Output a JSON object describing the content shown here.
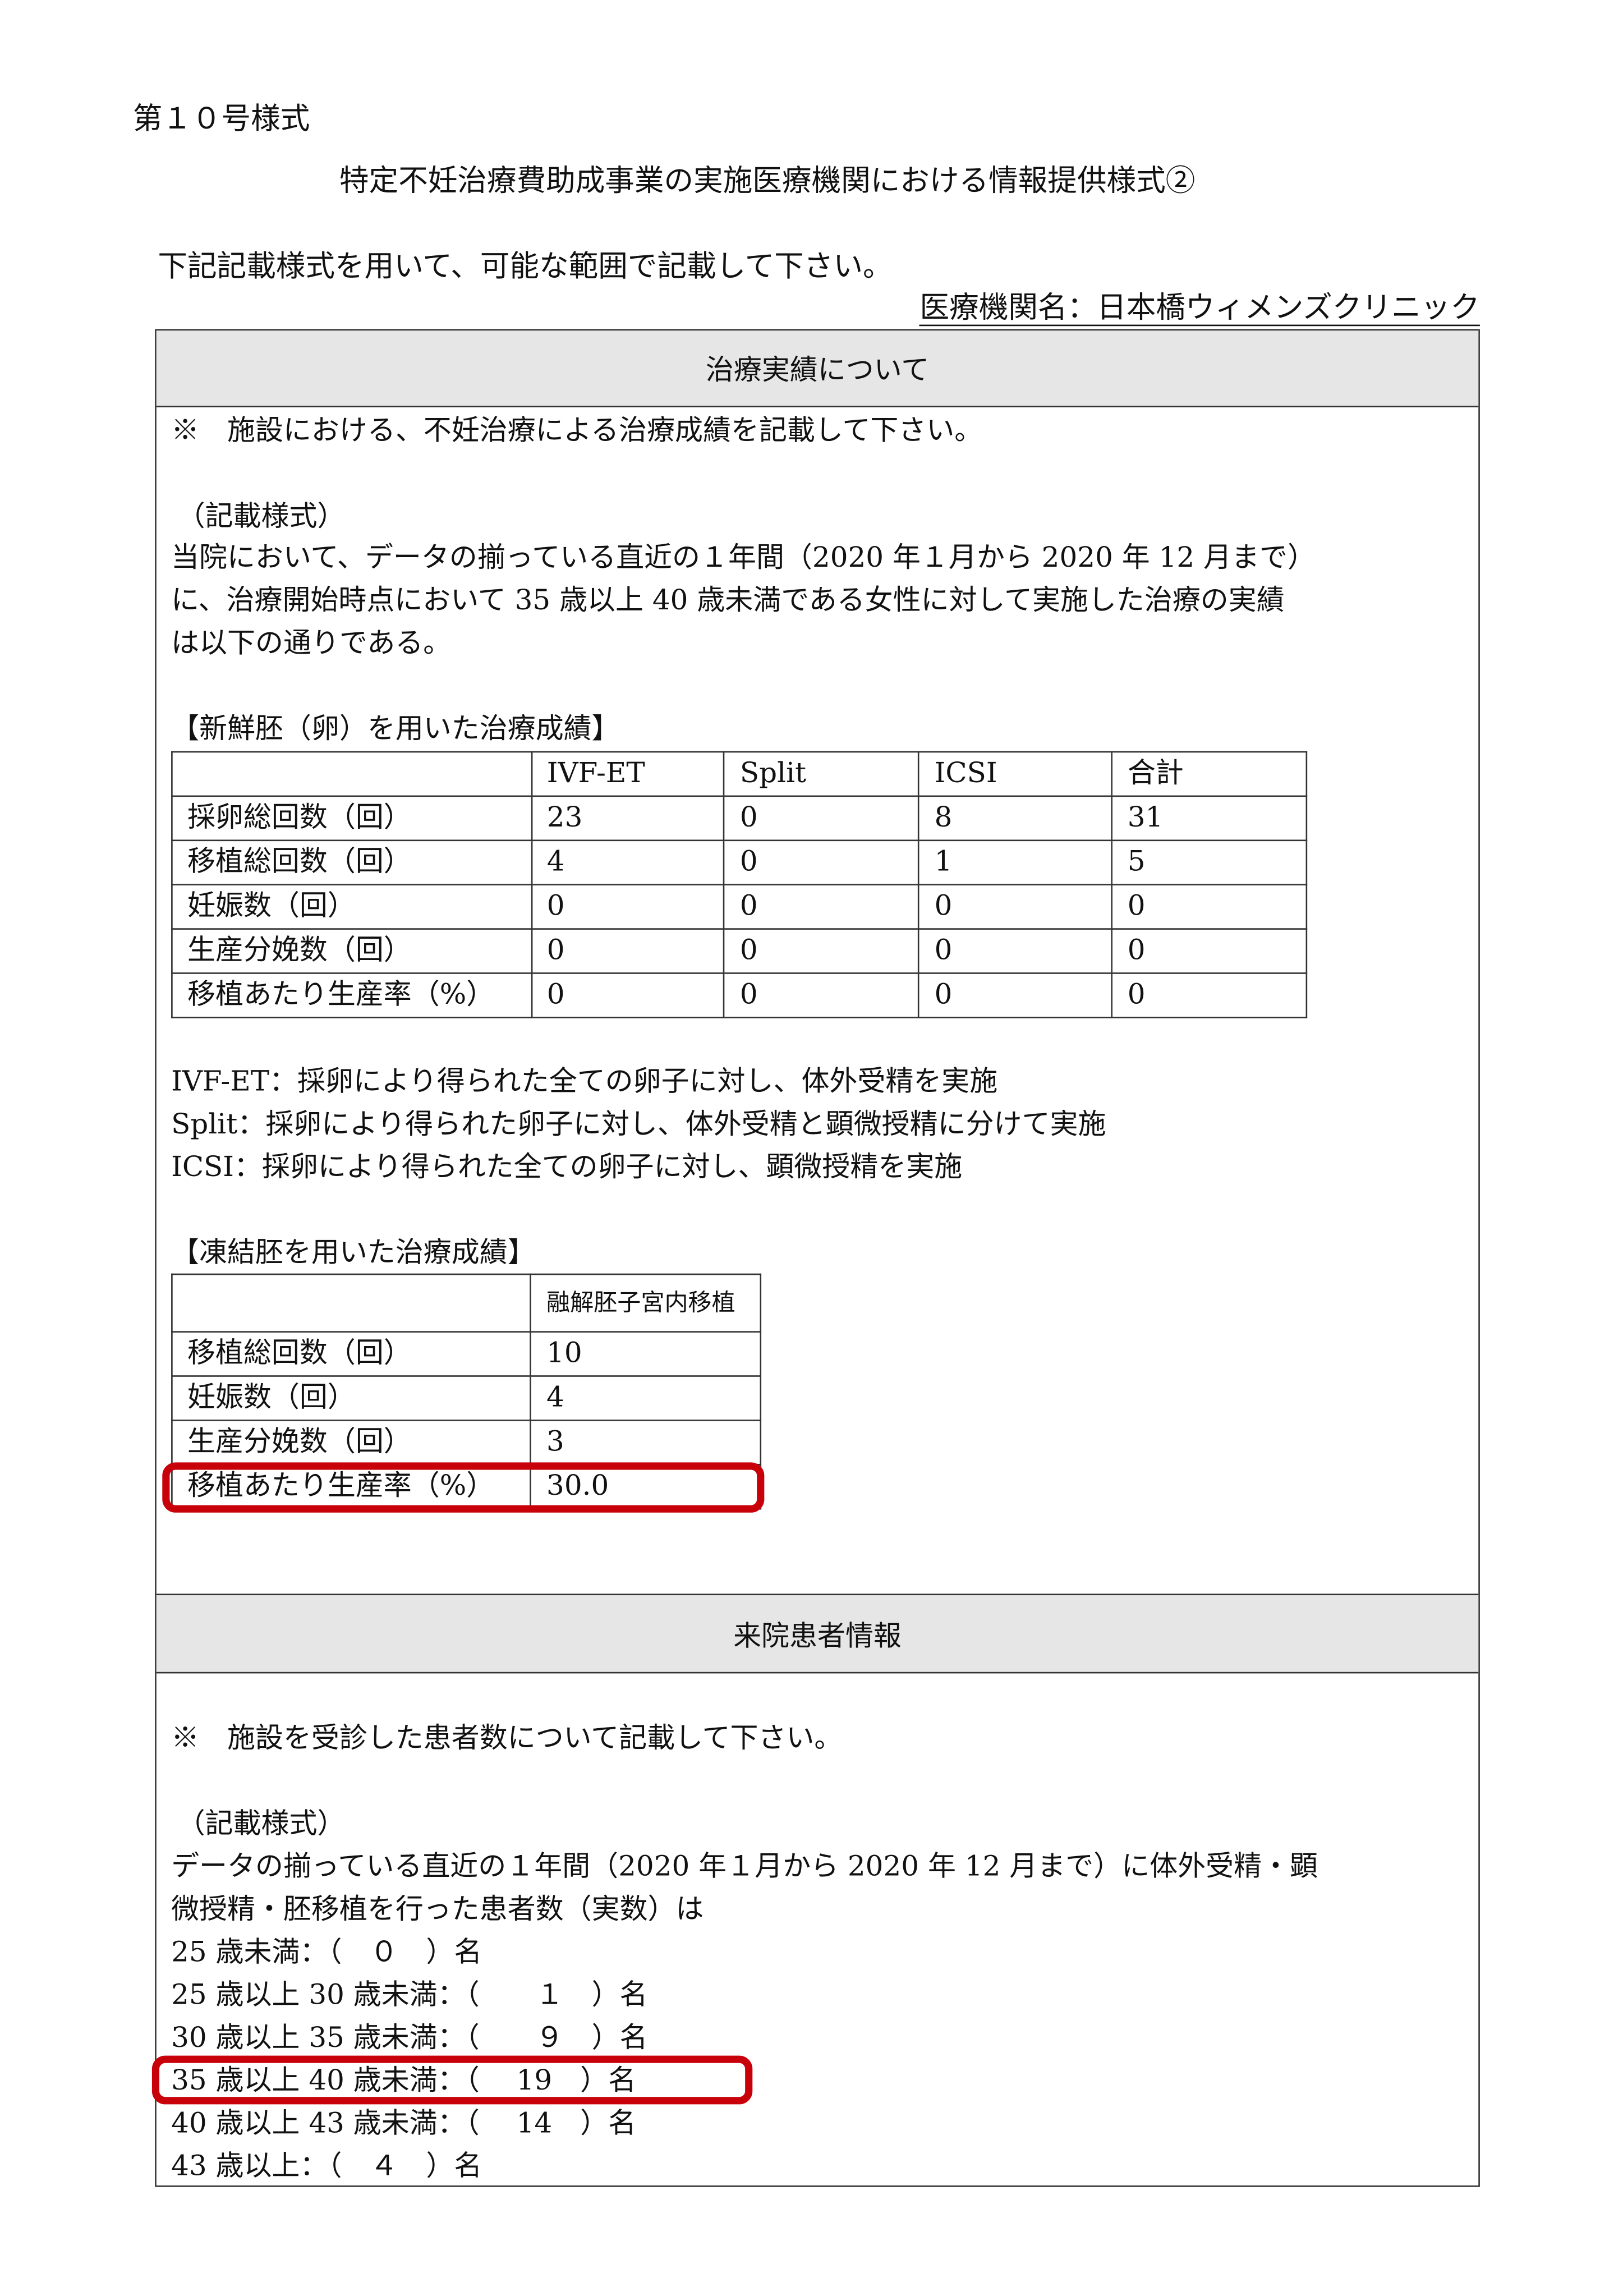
{
  "form_number": "第１０号様式",
  "title": "特定不妊治療費助成事業の実施医療機関における情報提供様式②",
  "instruction": "下記記載様式を用いて、可能な範囲で記載して下さい。",
  "institution": "医療機関名：日本橋ウィメンズクリニック",
  "section1": {
    "header": "治療実績について",
    "note": "※　施設における、不妊治療による治療成績を記載して下さい。",
    "format_label": "（記載様式）",
    "lines": [
      "当院において、データの揃っている直近の１年間（2020 年１月から 2020 年 12 月まで）",
      "に、治療開始時点において 35 歳以上 40 歳未満である女性に対して実施した治療の実績",
      "は以下の通りである。"
    ],
    "fresh_heading": "【新鮮胚（卵）を用いた治療成績】",
    "fresh_table": {
      "columns": [
        "",
        "IVF-ET",
        "Split",
        "ICSI",
        "合計"
      ],
      "rows": [
        [
          "採卵総回数（回）",
          "23",
          "0",
          "8",
          "31"
        ],
        [
          "移植総回数（回）",
          "4",
          "0",
          "1",
          "5"
        ],
        [
          "妊娠数（回）",
          "0",
          "0",
          "0",
          "0"
        ],
        [
          "生産分娩数（回）",
          "0",
          "0",
          "0",
          "0"
        ],
        [
          "移植あたり生産率（%）",
          "0",
          "0",
          "0",
          "0"
        ]
      ]
    },
    "definitions": [
      "IVF-ET：採卵により得られた全ての卵子に対し、体外受精を実施",
      "Split：採卵により得られた卵子に対し、体外受精と顕微授精に分けて実施",
      "ICSI：採卵により得られた全ての卵子に対し、顕微授精を実施"
    ],
    "frozen_heading": "【凍結胚を用いた治療成績】",
    "frozen_table": {
      "columns": [
        "",
        "融解胚子宮内移植"
      ],
      "rows": [
        [
          "移植総回数（回）",
          "10"
        ],
        [
          "妊娠数（回）",
          "4"
        ],
        [
          "生産分娩数（回）",
          "3"
        ],
        [
          "移植あたり生産率（%）",
          "30.0"
        ]
      ]
    }
  },
  "section2": {
    "header": "来院患者情報",
    "note": "※　施設を受診した患者数について記載して下さい。",
    "format_label": "（記載様式）",
    "lines": [
      "データの揃っている直近の１年間（2020 年１月から 2020 年 12 月まで）に体外受精・顕",
      "微授精・胚移植を行った患者数（実数）は"
    ],
    "ages": [
      "25 歳未満：（　０　）名",
      "25 歳以上 30 歳未満：（　　１　）名",
      "30 歳以上 35 歳未満：（　　９　）名",
      "35 歳以上 40 歳未満：（　 19　）名",
      "40 歳以上 43 歳未満：（　 14　）名",
      "43 歳以上：（　４　）名"
    ]
  },
  "highlight_color": "#c8000a"
}
